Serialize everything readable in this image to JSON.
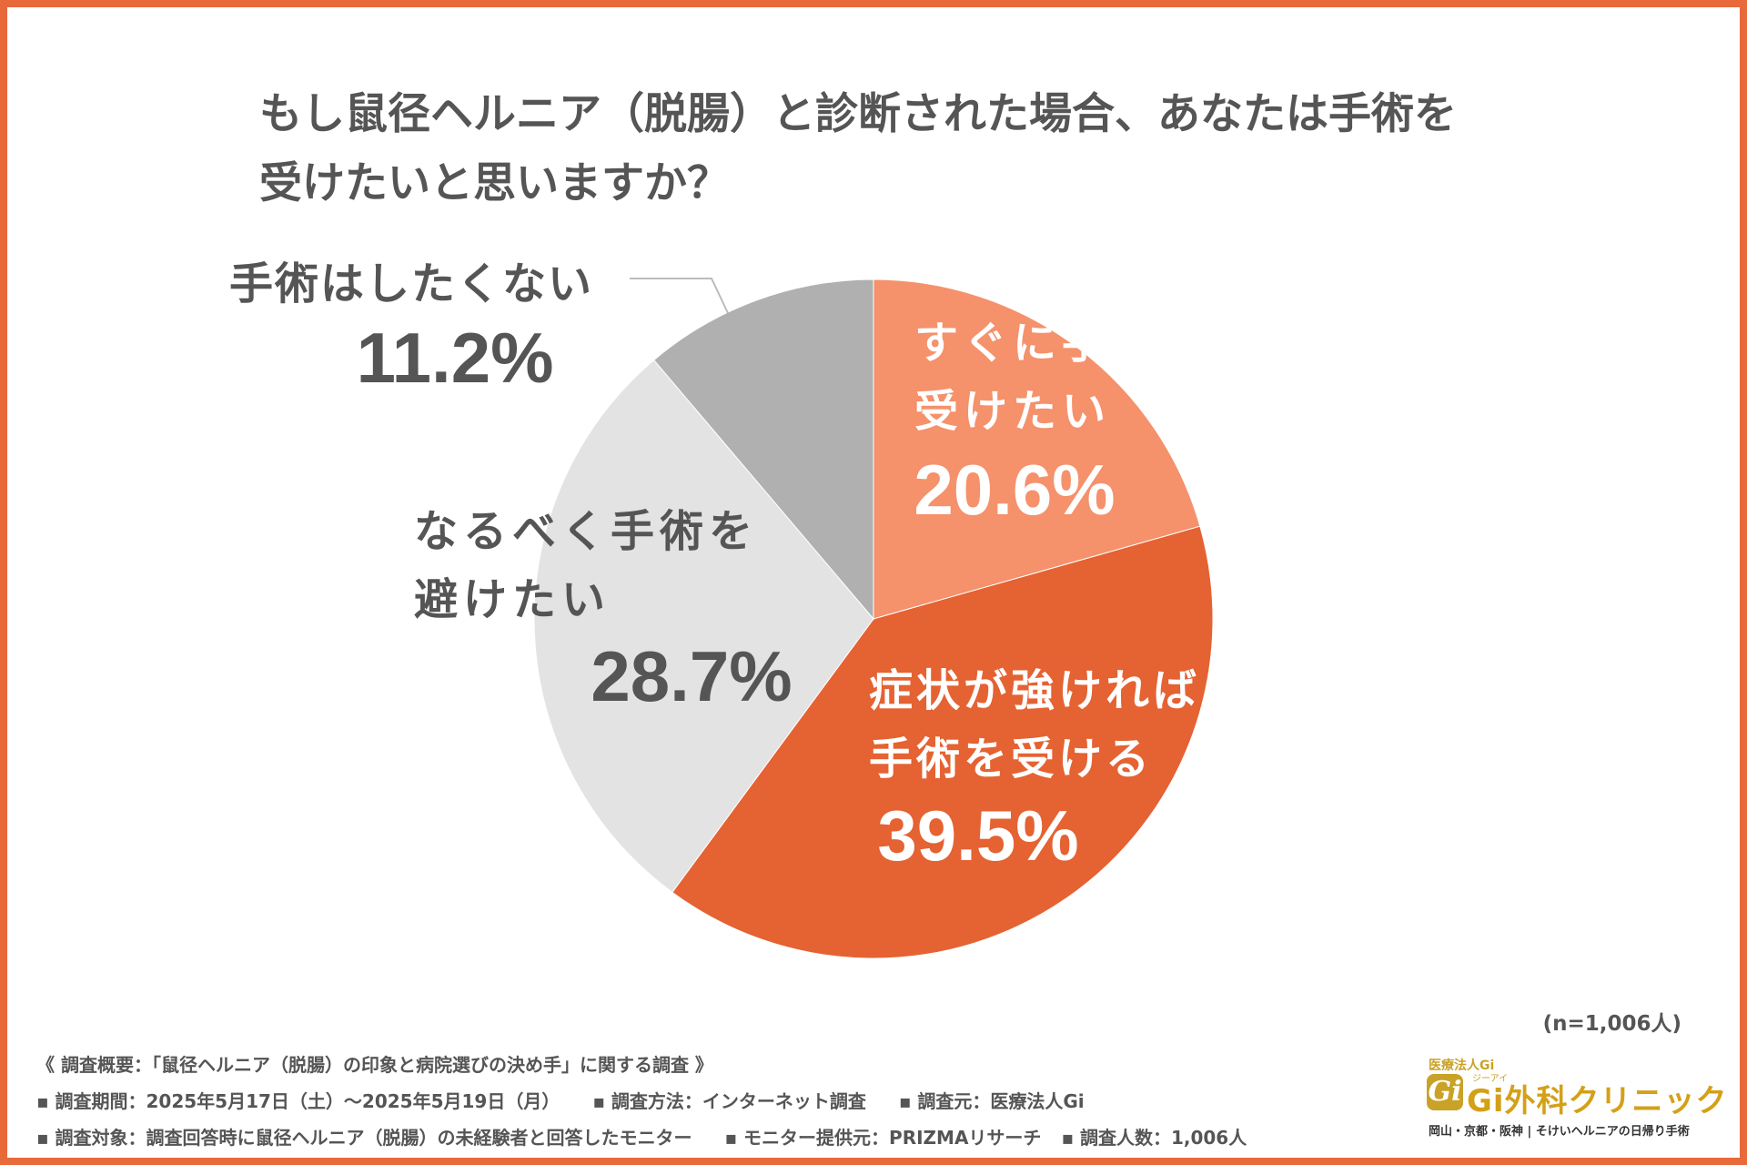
{
  "colors": {
    "border": "#e8693a",
    "slice_immediate": "#f5916b",
    "slice_if_severe": "#e56232",
    "slice_avoid": "#e3e3e3",
    "slice_no": "#b0b0b0",
    "text_dark": "#555555",
    "label_orange": "#f5916b",
    "logo_gold": "#c9a227"
  },
  "title": {
    "line1": "もし鼠径ヘルニア（脱腸）と診断された場合、あなたは手術を",
    "line2": "受けたいと思いますか？"
  },
  "chart_data": {
    "type": "pie",
    "title": "もし鼠径ヘルニア（脱腸）と診断された場合、あなたは手術を受けたいと思いますか？",
    "start": "12 o'clock, clockwise",
    "unit": "%",
    "slices": [
      {
        "name": "すぐに手術を受けたい",
        "label_lines": [
          "すぐに手術を",
          "受けたい"
        ],
        "value": 20.6,
        "value_label": "20.6%",
        "color": "#f5916b"
      },
      {
        "name": "症状が強ければ手術を受ける",
        "label_lines": [
          "症状が強ければ",
          "手術を受ける"
        ],
        "value": 39.5,
        "value_label": "39.5%",
        "color": "#e56232"
      },
      {
        "name": "なるべく手術を避けたい",
        "label_lines": [
          "なるべく手術を",
          "避けたい"
        ],
        "value": 28.7,
        "value_label": "28.7%",
        "color": "#e3e3e3"
      },
      {
        "name": "手術はしたくない",
        "label_lines": [
          "手術はしたくない"
        ],
        "value": 11.2,
        "value_label": "11.2%",
        "color": "#b0b0b0"
      }
    ],
    "sample_size": "(n=1,006人)"
  },
  "notes": {
    "summary": "《 調査概要：「鼠径ヘルニア（脱腸）の印象と病院選びの決め手」に関する調査 》",
    "period": "▪ 調査期間：2025年5月17日（土）～2025年5月19日（月）",
    "method": "▪ 調査方法：インターネット調査",
    "source": "▪ 調査元：医療法人Gi",
    "target": "▪ 調査対象：調査回答時に鼠径ヘルニア（脱腸）の未経験者と回答したモニター",
    "provider": "▪ モニター提供元：PRIZMAリサーチ",
    "count": "▪ 調査人数：1,006人"
  },
  "logo": {
    "corp": "医療法人Gi",
    "mark": "Gi",
    "ruby": "ジーアイ",
    "name": "Gi外科クリニック",
    "tagline": "岡山・京都・阪神 | そけいヘルニアの日帰り手術"
  }
}
